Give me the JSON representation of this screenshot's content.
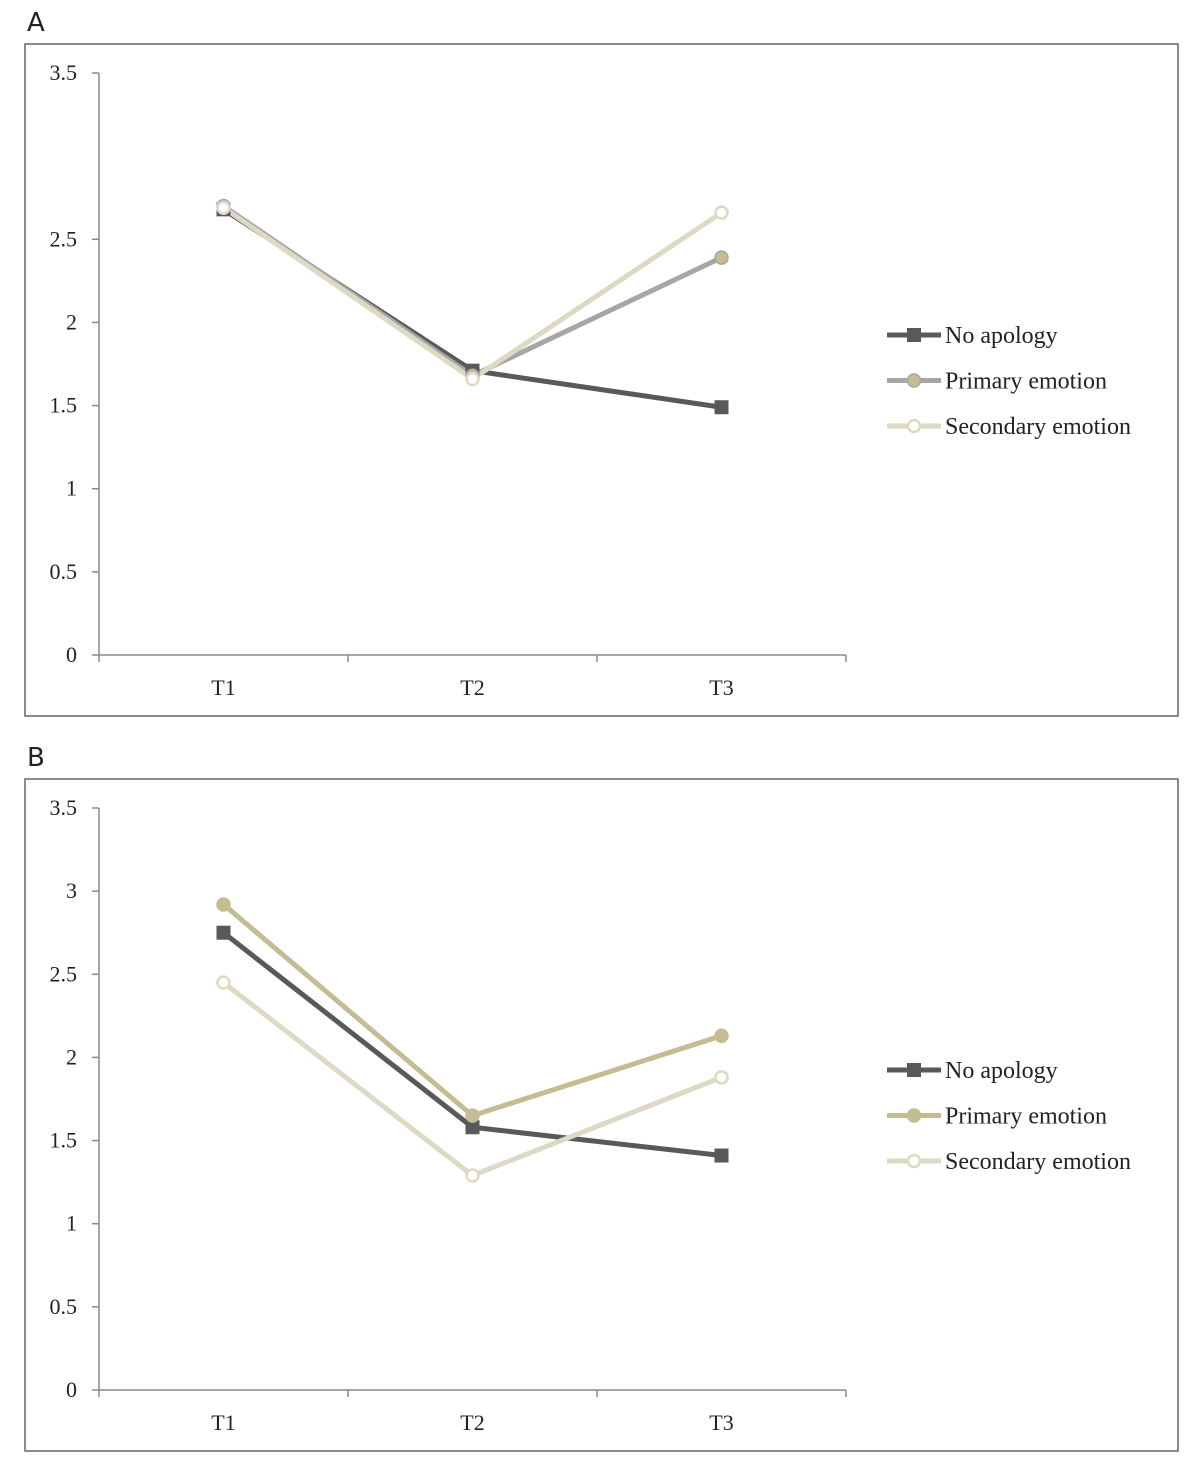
{
  "chart_data": [
    {
      "type": "line",
      "panel_label": "A",
      "categories": [
        "T1",
        "T2",
        "T3"
      ],
      "ylim": [
        0,
        3.5
      ],
      "yticks": [
        "0",
        "0.5",
        "1",
        "1.5",
        "2",
        "2.5",
        "3.5"
      ],
      "ytick_values": [
        0,
        0.5,
        1,
        1.5,
        2,
        2.5,
        3.5
      ],
      "legend_position": "right",
      "series": [
        {
          "name": "No apology",
          "values": [
            2.68,
            1.71,
            1.49
          ],
          "color": "#595959",
          "marker": "square"
        },
        {
          "name": "Primary emotion",
          "values": [
            2.7,
            1.68,
            2.39
          ],
          "color": "#a6a6a6",
          "marker": "circle",
          "marker_fill": "#c4bc93"
        },
        {
          "name": "Secondary emotion",
          "values": [
            2.69,
            1.66,
            2.66
          ],
          "color": "#ddd9c4",
          "marker": "open-circle",
          "marker_fill": "#ffffff"
        }
      ]
    },
    {
      "type": "line",
      "panel_label": "B",
      "categories": [
        "T1",
        "T2",
        "T3"
      ],
      "ylim": [
        0,
        3.5
      ],
      "yticks": [
        "0",
        "0.5",
        "1",
        "1.5",
        "2",
        "2.5",
        "3",
        "3.5"
      ],
      "ytick_values": [
        0,
        0.5,
        1,
        1.5,
        2,
        2.5,
        3,
        3.5
      ],
      "legend_position": "right",
      "series": [
        {
          "name": "No apology",
          "values": [
            2.75,
            1.58,
            1.41
          ],
          "color": "#595959",
          "marker": "square"
        },
        {
          "name": "Primary emotion",
          "values": [
            2.92,
            1.65,
            2.13
          ],
          "color": "#c4bc93",
          "marker": "circle",
          "marker_fill": "#c4bc93"
        },
        {
          "name": "Secondary emotion",
          "values": [
            2.45,
            1.29,
            1.88
          ],
          "color": "#ddd9c4",
          "marker": "open-circle",
          "marker_fill": "#ffffff"
        }
      ]
    }
  ]
}
